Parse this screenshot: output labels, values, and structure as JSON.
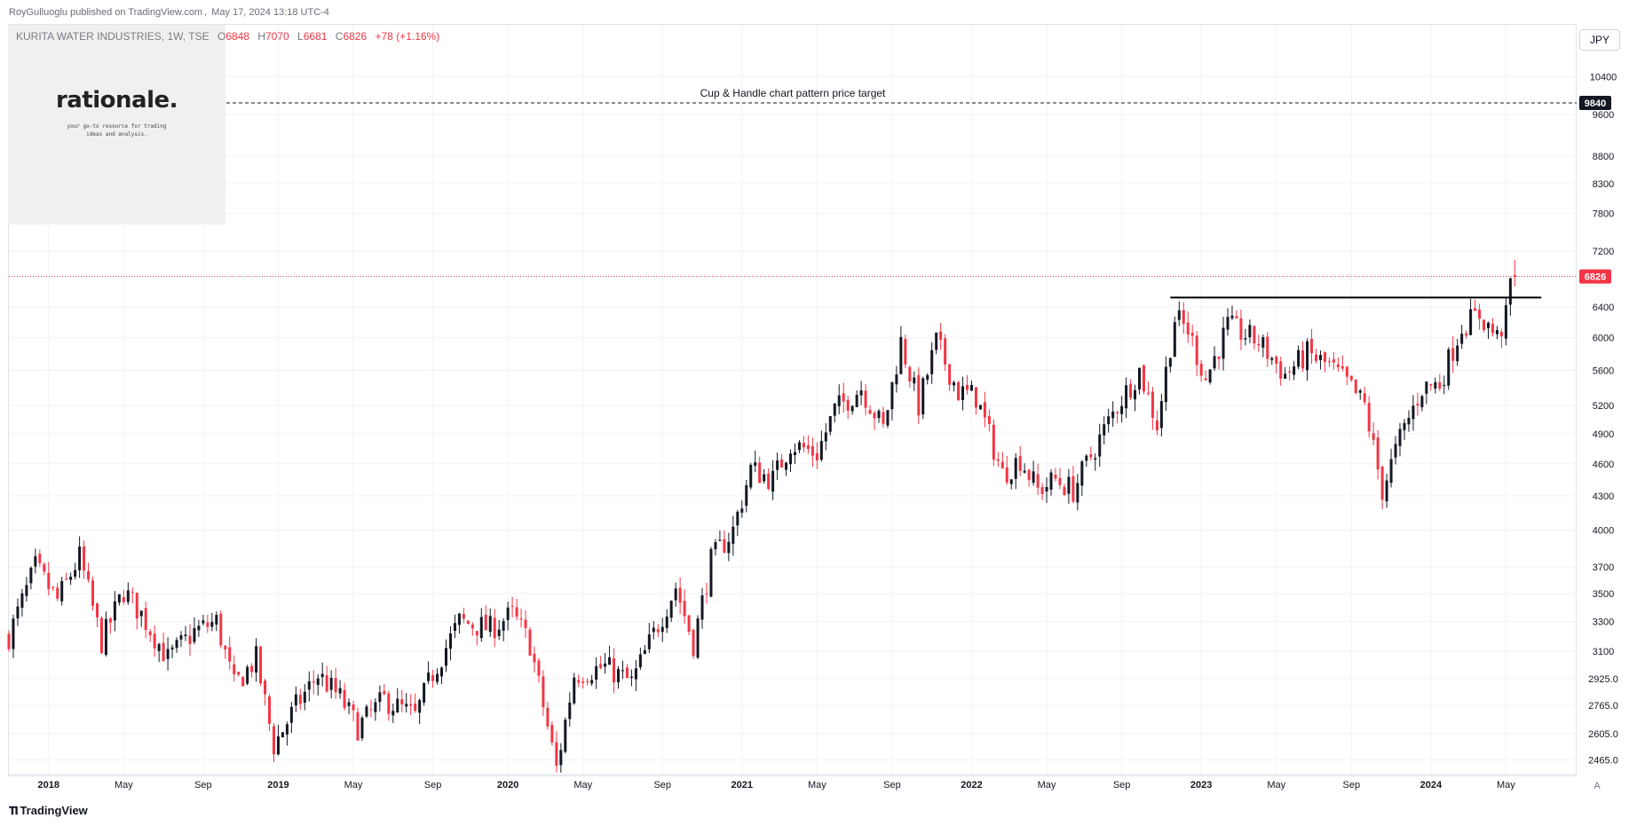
{
  "header": {
    "publisher": "RoyGulluoglu published on TradingView.com",
    "timestamp": "May 17, 2024 13:18 UTC-4"
  },
  "legend": {
    "symbol": "KURITA WATER INDUSTRIES, 1W, TSE",
    "open_label": "O",
    "open": "6848",
    "high_label": "H",
    "high": "7070",
    "low_label": "L",
    "low": "6681",
    "close_label": "C",
    "close": "6826",
    "change": "+78 (+1.16%)"
  },
  "watermark": {
    "word": "rationale.",
    "tagline_line1": "your go-to resource for trading",
    "tagline_line2": "ideas and analysis."
  },
  "currency": "JPY",
  "footer": {
    "brand": "TradingView",
    "icon": "tradingview-logo-icon",
    "auto_label": "A"
  },
  "colors": {
    "up": "#131722",
    "down": "#f23645",
    "price_line": "#f23645",
    "target_line": "#131722",
    "grid": "#f0f3fa"
  },
  "chart_data": {
    "type": "candlestick",
    "scale": "log",
    "y_ticks": [
      2465,
      2605,
      2765,
      2925,
      3100,
      3300,
      3500,
      3700,
      4000,
      4300,
      4600,
      4900,
      5200,
      5600,
      6000,
      6400,
      7200,
      7800,
      8300,
      8800,
      9600,
      10400
    ],
    "y_tick_labels": [
      "2465.0",
      "2605.0",
      "2765.0",
      "2925.0",
      "3100",
      "3300",
      "3500",
      "3700",
      "4000",
      "4300",
      "4600",
      "4900",
      "5200",
      "5600",
      "6000",
      "6400",
      "7200",
      "7800",
      "8300",
      "8800",
      "9600",
      "10400"
    ],
    "ylim": [
      2390,
      11600
    ],
    "x_start": "2017-11-03",
    "x_end": "2024-08-23",
    "x_ticks": [
      {
        "date": "2018-01-05",
        "label": "2018",
        "bold": true
      },
      {
        "date": "2018-05-04",
        "label": "May",
        "bold": false
      },
      {
        "date": "2018-09-07",
        "label": "Sep",
        "bold": false
      },
      {
        "date": "2019-01-04",
        "label": "2019",
        "bold": true
      },
      {
        "date": "2019-05-03",
        "label": "May",
        "bold": false
      },
      {
        "date": "2019-09-06",
        "label": "Sep",
        "bold": false
      },
      {
        "date": "2020-01-03",
        "label": "2020",
        "bold": true
      },
      {
        "date": "2020-05-01",
        "label": "May",
        "bold": false
      },
      {
        "date": "2020-09-04",
        "label": "Sep",
        "bold": false
      },
      {
        "date": "2021-01-08",
        "label": "2021",
        "bold": true
      },
      {
        "date": "2021-05-07",
        "label": "May",
        "bold": false
      },
      {
        "date": "2021-09-03",
        "label": "Sep",
        "bold": false
      },
      {
        "date": "2022-01-07",
        "label": "2022",
        "bold": true
      },
      {
        "date": "2022-05-06",
        "label": "May",
        "bold": false
      },
      {
        "date": "2022-09-02",
        "label": "Sep",
        "bold": false
      },
      {
        "date": "2023-01-06",
        "label": "2023",
        "bold": true
      },
      {
        "date": "2023-05-05",
        "label": "May",
        "bold": false
      },
      {
        "date": "2023-09-01",
        "label": "Sep",
        "bold": false
      },
      {
        "date": "2024-01-05",
        "label": "2024",
        "bold": true
      },
      {
        "date": "2024-05-03",
        "label": "May",
        "bold": false
      }
    ],
    "anchors": [
      {
        "date": "2017-11-03",
        "value": 3200
      },
      {
        "date": "2017-12-15",
        "value": 3700
      },
      {
        "date": "2018-01-19",
        "value": 3450
      },
      {
        "date": "2018-02-23",
        "value": 3780
      },
      {
        "date": "2018-03-30",
        "value": 3160
      },
      {
        "date": "2018-05-04",
        "value": 3520
      },
      {
        "date": "2018-06-01",
        "value": 3350
      },
      {
        "date": "2018-07-13",
        "value": 3050
      },
      {
        "date": "2018-08-24",
        "value": 3230
      },
      {
        "date": "2018-09-28",
        "value": 3300
      },
      {
        "date": "2018-10-26",
        "value": 2880
      },
      {
        "date": "2018-11-30",
        "value": 3050
      },
      {
        "date": "2018-12-28",
        "value": 2540
      },
      {
        "date": "2019-02-01",
        "value": 2760
      },
      {
        "date": "2019-03-08",
        "value": 2950
      },
      {
        "date": "2019-04-12",
        "value": 2810
      },
      {
        "date": "2019-05-10",
        "value": 2640
      },
      {
        "date": "2019-06-21",
        "value": 2800
      },
      {
        "date": "2019-08-09",
        "value": 2700
      },
      {
        "date": "2019-09-06",
        "value": 2960
      },
      {
        "date": "2019-10-18",
        "value": 3300
      },
      {
        "date": "2019-12-06",
        "value": 3250
      },
      {
        "date": "2020-01-10",
        "value": 3350
      },
      {
        "date": "2020-02-07",
        "value": 3150
      },
      {
        "date": "2020-03-20",
        "value": 2420
      },
      {
        "date": "2020-04-17",
        "value": 2950
      },
      {
        "date": "2020-06-05",
        "value": 3000
      },
      {
        "date": "2020-07-17",
        "value": 2900
      },
      {
        "date": "2020-08-28",
        "value": 3280
      },
      {
        "date": "2020-09-25",
        "value": 3550
      },
      {
        "date": "2020-10-23",
        "value": 3150
      },
      {
        "date": "2020-11-20",
        "value": 3750
      },
      {
        "date": "2020-12-25",
        "value": 4000
      },
      {
        "date": "2021-01-22",
        "value": 4550
      },
      {
        "date": "2021-02-26",
        "value": 4450
      },
      {
        "date": "2021-03-26",
        "value": 4800
      },
      {
        "date": "2021-05-07",
        "value": 4700
      },
      {
        "date": "2021-06-04",
        "value": 5150
      },
      {
        "date": "2021-07-16",
        "value": 5400
      },
      {
        "date": "2021-08-20",
        "value": 4950
      },
      {
        "date": "2021-09-17",
        "value": 5950
      },
      {
        "date": "2021-10-15",
        "value": 5200
      },
      {
        "date": "2021-11-12",
        "value": 5950
      },
      {
        "date": "2021-12-17",
        "value": 5350
      },
      {
        "date": "2022-01-14",
        "value": 5300
      },
      {
        "date": "2022-02-25",
        "value": 4500
      },
      {
        "date": "2022-03-25",
        "value": 4650
      },
      {
        "date": "2022-04-22",
        "value": 4350
      },
      {
        "date": "2022-05-20",
        "value": 4450
      },
      {
        "date": "2022-06-17",
        "value": 4350
      },
      {
        "date": "2022-07-29",
        "value": 4850
      },
      {
        "date": "2022-08-26",
        "value": 5200
      },
      {
        "date": "2022-09-30",
        "value": 5600
      },
      {
        "date": "2022-10-28",
        "value": 5000
      },
      {
        "date": "2022-11-25",
        "value": 6250
      },
      {
        "date": "2022-12-16",
        "value": 6100
      },
      {
        "date": "2023-01-13",
        "value": 5500
      },
      {
        "date": "2023-02-17",
        "value": 6150
      },
      {
        "date": "2023-04-07",
        "value": 5950
      },
      {
        "date": "2023-05-19",
        "value": 5550
      },
      {
        "date": "2023-06-23",
        "value": 5800
      },
      {
        "date": "2023-07-28",
        "value": 5650
      },
      {
        "date": "2023-08-25",
        "value": 5450
      },
      {
        "date": "2023-09-22",
        "value": 5200
      },
      {
        "date": "2023-10-20",
        "value": 4350
      },
      {
        "date": "2023-11-17",
        "value": 4850
      },
      {
        "date": "2023-12-22",
        "value": 5400
      },
      {
        "date": "2024-01-19",
        "value": 5450
      },
      {
        "date": "2024-02-23",
        "value": 6150
      },
      {
        "date": "2024-03-22",
        "value": 6300
      },
      {
        "date": "2024-04-19",
        "value": 6000
      },
      {
        "date": "2024-05-03",
        "value": 6260
      },
      {
        "date": "2024-05-10",
        "value": 6750
      },
      {
        "date": "2024-05-17",
        "value": 6826
      }
    ],
    "last_candle": {
      "date": "2024-05-17",
      "open": 6848,
      "high": 7070,
      "low": 6681,
      "close": 6826
    },
    "resistance": {
      "value": 6530,
      "start": "2022-11-18",
      "end": "2024-06-28"
    },
    "target": {
      "value": 9840,
      "label": "Cup & Handle chart pattern price target",
      "badge": "9840"
    },
    "current_price": {
      "value": 6826,
      "badge": "6826"
    }
  }
}
